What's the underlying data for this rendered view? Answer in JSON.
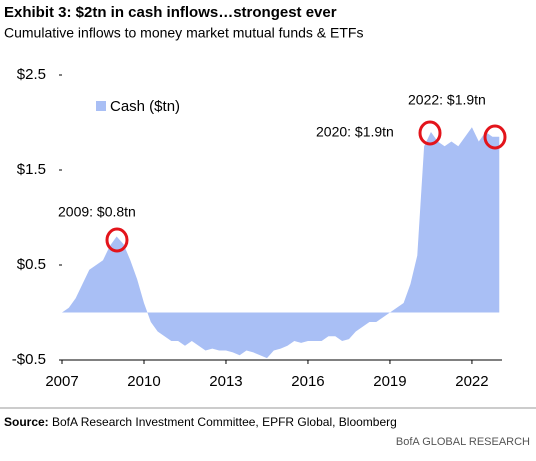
{
  "chart_data": {
    "type": "area",
    "title": "Exhibit 3: $2tn in cash inflows…strongest ever",
    "subtitle": "Cumulative inflows to money market mutual funds & ETFs",
    "series": [
      {
        "name": "Cash ($tn)",
        "color": "#a9bff5",
        "x": [
          2007.0,
          2007.25,
          2007.5,
          2007.75,
          2008.0,
          2008.25,
          2008.5,
          2008.75,
          2009.0,
          2009.25,
          2009.5,
          2009.75,
          2010.0,
          2010.25,
          2010.5,
          2010.75,
          2011.0,
          2011.25,
          2011.5,
          2011.75,
          2012.0,
          2012.25,
          2012.5,
          2012.75,
          2013.0,
          2013.25,
          2013.5,
          2013.75,
          2014.0,
          2014.25,
          2014.5,
          2014.75,
          2015.0,
          2015.25,
          2015.5,
          2015.75,
          2016.0,
          2016.25,
          2016.5,
          2016.75,
          2017.0,
          2017.25,
          2017.5,
          2017.75,
          2018.0,
          2018.25,
          2018.5,
          2018.75,
          2019.0,
          2019.25,
          2019.5,
          2019.75,
          2020.0,
          2020.25,
          2020.5,
          2020.75,
          2021.0,
          2021.25,
          2021.5,
          2021.75,
          2022.0,
          2022.25,
          2022.5,
          2022.75,
          2023.0
        ],
        "values": [
          0.0,
          0.05,
          0.15,
          0.3,
          0.45,
          0.5,
          0.55,
          0.7,
          0.8,
          0.72,
          0.55,
          0.35,
          0.1,
          -0.1,
          -0.2,
          -0.25,
          -0.3,
          -0.3,
          -0.35,
          -0.3,
          -0.35,
          -0.4,
          -0.38,
          -0.4,
          -0.4,
          -0.42,
          -0.45,
          -0.4,
          -0.42,
          -0.45,
          -0.48,
          -0.4,
          -0.38,
          -0.35,
          -0.3,
          -0.32,
          -0.3,
          -0.3,
          -0.3,
          -0.25,
          -0.25,
          -0.3,
          -0.28,
          -0.2,
          -0.15,
          -0.1,
          -0.1,
          -0.05,
          0.0,
          0.05,
          0.1,
          0.3,
          0.6,
          1.75,
          1.9,
          1.8,
          1.75,
          1.8,
          1.75,
          1.85,
          1.95,
          1.8,
          1.9,
          1.85,
          1.85
        ]
      }
    ],
    "xlim": [
      2007,
      2023.1
    ],
    "xticks": [
      2007,
      2010,
      2013,
      2016,
      2019,
      2022
    ],
    "ylim": [
      -0.5,
      2.5
    ],
    "yticks": [
      {
        "value": -0.5,
        "label": "-$0.5"
      },
      {
        "value": 0.5,
        "label": "$0.5"
      },
      {
        "value": 1.5,
        "label": "$1.5"
      },
      {
        "value": 2.5,
        "label": "$2.5"
      }
    ],
    "legend": "upper left",
    "annotations": [
      "2009: $0.8tn",
      "2020: $1.9tn",
      "2022: $1.9tn"
    ],
    "source_label": "Source:",
    "source": "BofA Research Investment Committee, EPFR Global, Bloomberg",
    "footer": "BofA GLOBAL RESEARCH"
  }
}
